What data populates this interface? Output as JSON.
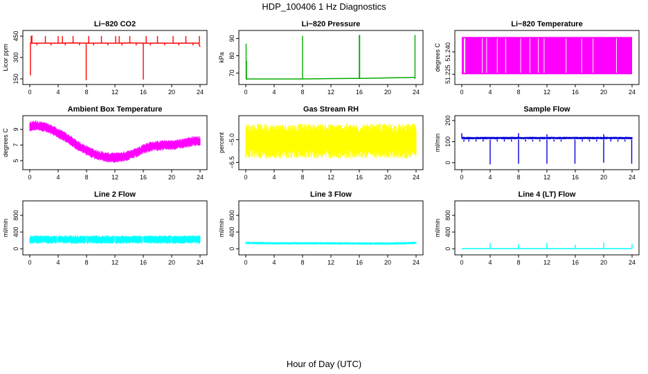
{
  "title": "HDP_100406  1 Hz Diagnostics",
  "xlabel": "Hour of Day (UTC)",
  "chart_data": [
    {
      "type": "line",
      "title": "Li−820 CO2",
      "ylabel": "Licor ppm",
      "color": "#ff0000",
      "xlim": [
        0,
        24
      ],
      "xticks": [
        0,
        4,
        8,
        12,
        16,
        20,
        24
      ],
      "ylim": [
        130,
        470
      ],
      "yticks": [
        150,
        300,
        450
      ],
      "ytick_labels": [
        "150",
        "300",
        "450"
      ],
      "series": [
        {
          "name": "baseline",
          "style": "line",
          "x": [
            0,
            0.2,
            2,
            4,
            6,
            7.9,
            8.1,
            10,
            12,
            14,
            15.9,
            16.1,
            18,
            20,
            22,
            23.8,
            24
          ],
          "y": [
            400,
            400,
            401,
            400,
            402,
            401,
            400,
            401,
            400,
            402,
            401,
            400,
            401,
            400,
            401,
            400,
            375
          ]
        },
        {
          "name": "spikes_up",
          "style": "spike",
          "base": 400,
          "x": [
            0.2,
            0.3,
            2.2,
            4.0,
            4.6,
            6.1,
            8.3,
            10.1,
            12.1,
            12.6,
            14.1,
            16.4,
            18.0,
            20.2,
            22.0,
            23.9
          ],
          "y": [
            450,
            455,
            450,
            450,
            450,
            450,
            450,
            450,
            450,
            450,
            450,
            450,
            450,
            450,
            450,
            450
          ]
        },
        {
          "name": "spikes_down",
          "style": "spike",
          "base": 400,
          "x": [
            0.1,
            7.95,
            16.0,
            1.0,
            3.0,
            5.0,
            7.0,
            9.0,
            11.0,
            13.0,
            15.0,
            17.0,
            19.0,
            21.0,
            23.0
          ],
          "y": [
            175,
            140,
            145,
            385,
            385,
            385,
            385,
            385,
            385,
            385,
            385,
            385,
            385,
            385,
            385
          ]
        }
      ]
    },
    {
      "type": "line",
      "title": "Li−820 Pressure",
      "ylabel": "kPa",
      "color": "#00aa00",
      "xlim": [
        0,
        24
      ],
      "xticks": [
        0,
        4,
        8,
        12,
        16,
        20,
        24
      ],
      "ylim": [
        65,
        93
      ],
      "yticks": [
        70,
        80,
        90
      ],
      "ytick_labels": [
        "70",
        "80",
        "90"
      ],
      "series": [
        {
          "name": "baseline",
          "style": "line",
          "x": [
            0,
            0.3,
            4,
            8,
            12,
            16,
            20,
            23.8
          ],
          "y": [
            66.5,
            66.6,
            66.6,
            66.6,
            66.8,
            66.9,
            67.2,
            67.5
          ]
        },
        {
          "name": "spikes_up",
          "style": "spike",
          "base": 66.6,
          "x": [
            0.05,
            0.1,
            8.0,
            16.0,
            16.05,
            23.85
          ],
          "y": [
            87,
            77,
            91.5,
            92,
            92,
            92
          ]
        }
      ]
    },
    {
      "type": "line",
      "title": "Li−820 Temperature",
      "ylabel": "degrees C",
      "color": "#ff00ff",
      "xlim": [
        0,
        24
      ],
      "xticks": [
        0,
        4,
        8,
        12,
        16,
        20,
        24
      ],
      "ylim": [
        51.22,
        51.2525
      ],
      "yticks": [
        51.225,
        51.24
      ],
      "ytick_labels": [
        "51.225",
        "51.240"
      ],
      "series": [
        {
          "name": "filled_bands",
          "style": "bands",
          "low": 51.225,
          "high": 51.25,
          "x": [
            0,
            0.3,
            0.6,
            1.5,
            1.7,
            2.8,
            3.1,
            3.4,
            3.6,
            4.2,
            4.5,
            6.0,
            6.4,
            24
          ],
          "gaps": [
            0.35,
            0.45,
            2.9,
            3.5,
            5.0,
            6.2,
            8.3,
            9.6,
            10.8,
            11.6,
            14.7,
            16.9,
            18.5,
            21.8
          ]
        }
      ]
    },
    {
      "type": "line",
      "title": "Ambient Box Temperature",
      "ylabel": "degrees C",
      "color": "#ff00ff",
      "xlim": [
        0,
        24
      ],
      "xticks": [
        0,
        4,
        8,
        12,
        16,
        20,
        24
      ],
      "ylim": [
        4.2,
        10.4
      ],
      "yticks": [
        5,
        7,
        9
      ],
      "ytick_labels": [
        "5",
        "7",
        "9"
      ],
      "series": [
        {
          "name": "mean",
          "style": "band",
          "half_width": 0.65,
          "x": [
            0,
            0.5,
            1,
            2,
            3,
            4,
            5,
            6,
            7,
            8,
            9,
            10,
            11,
            12,
            13,
            14,
            15,
            16,
            17,
            18,
            19,
            20,
            21,
            22,
            23,
            24
          ],
          "y": [
            9.3,
            9.5,
            9.5,
            9.3,
            9.0,
            8.5,
            8.0,
            7.4,
            6.8,
            6.3,
            5.9,
            5.6,
            5.4,
            5.4,
            5.5,
            5.7,
            6.0,
            6.5,
            6.8,
            6.9,
            7.0,
            7.0,
            7.1,
            7.3,
            7.5,
            7.5
          ]
        }
      ]
    },
    {
      "type": "line",
      "title": "Gas Stream RH",
      "ylabel": "percent",
      "color": "#ffff00",
      "xlim": [
        0,
        24
      ],
      "xticks": [
        0,
        4,
        8,
        12,
        16,
        20,
        24
      ],
      "ylim": [
        -6.8,
        -3.6
      ],
      "yticks": [
        -6.5,
        -5.0
      ],
      "ytick_labels": [
        "−6.5",
        "−5.0"
      ],
      "series": [
        {
          "name": "noise",
          "style": "band",
          "half_width": 1.15,
          "x": [
            0,
            4,
            8,
            12,
            16,
            20,
            24
          ],
          "y": [
            -5.1,
            -5.1,
            -5.1,
            -5.1,
            -5.1,
            -5.1,
            -5.1
          ]
        }
      ]
    },
    {
      "type": "line",
      "title": "Sample Flow",
      "ylabel": "ml/min",
      "color": "#0000dd",
      "xlim": [
        0,
        24
      ],
      "xticks": [
        0,
        4,
        8,
        12,
        16,
        20,
        24
      ],
      "ylim": [
        -20,
        210
      ],
      "yticks": [
        0,
        100,
        200
      ],
      "ytick_labels": [
        "0",
        "100",
        "200"
      ],
      "series": [
        {
          "name": "mean",
          "style": "band",
          "half_width": 6,
          "x": [
            0,
            4,
            8,
            12,
            16,
            20,
            24
          ],
          "y": [
            117,
            117,
            117,
            117,
            117,
            117,
            117
          ]
        },
        {
          "name": "dropouts",
          "style": "spike",
          "base": 110,
          "x": [
            4.0,
            8.0,
            12.0,
            15.95,
            20.0,
            23.95,
            0.3,
            1.0,
            2.0,
            3.0,
            5.0,
            6.0,
            7.0,
            9.0,
            10.0,
            11.0,
            13.0,
            14.0,
            17.0,
            18.0,
            19.0,
            21.0,
            22.0,
            23.0
          ],
          "y": [
            -8,
            -5,
            -5,
            -5,
            0,
            -5,
            100,
            100,
            100,
            100,
            100,
            100,
            100,
            100,
            100,
            100,
            100,
            100,
            100,
            100,
            100,
            100,
            100,
            100
          ]
        },
        {
          "name": "spikes_up",
          "style": "spike",
          "base": 120,
          "x": [
            0.0,
            8.0,
            12.0,
            20.0
          ],
          "y": [
            140,
            140,
            135,
            135
          ]
        }
      ]
    },
    {
      "type": "line",
      "title": "Line 2 Flow",
      "ylabel": "ml/min",
      "color": "#00ffff",
      "xlim": [
        0,
        24
      ],
      "xticks": [
        0,
        4,
        8,
        12,
        16,
        20,
        24
      ],
      "ylim": [
        -80,
        1080
      ],
      "yticks": [
        0,
        400,
        800
      ],
      "ytick_labels": [
        "0",
        "400",
        "800"
      ],
      "series": [
        {
          "name": "mean",
          "style": "band",
          "half_width": 100,
          "x": [
            0,
            24
          ],
          "y": [
            220,
            220
          ],
          "gaps": [
            3.9,
            8.0,
            12.0,
            15.9,
            19.9
          ]
        }
      ]
    },
    {
      "type": "line",
      "title": "Line 3 Flow",
      "ylabel": "ml/min",
      "color": "#00ffff",
      "xlim": [
        0,
        24
      ],
      "xticks": [
        0,
        4,
        8,
        12,
        16,
        20,
        24
      ],
      "ylim": [
        -80,
        1080
      ],
      "yticks": [
        0,
        400,
        800
      ],
      "ytick_labels": [
        "0",
        "400",
        "800"
      ],
      "series": [
        {
          "name": "mean",
          "style": "band",
          "half_width": 30,
          "x": [
            0,
            4,
            8,
            12,
            16,
            20,
            24
          ],
          "y": [
            140,
            130,
            130,
            130,
            125,
            125,
            140
          ]
        }
      ]
    },
    {
      "type": "line",
      "title": "Line 4 (LT) Flow",
      "ylabel": "ml/min",
      "color": "#00ffff",
      "xlim": [
        0,
        24
      ],
      "xticks": [
        0,
        4,
        8,
        12,
        16,
        20,
        24
      ],
      "ylim": [
        -80,
        1080
      ],
      "yticks": [
        0,
        400,
        800
      ],
      "ytick_labels": [
        "0",
        "400",
        "800"
      ],
      "series": [
        {
          "name": "baseline",
          "style": "line",
          "x": [
            0,
            24
          ],
          "y": [
            5,
            5
          ]
        },
        {
          "name": "spikes_up",
          "style": "spike",
          "base": 5,
          "x": [
            4.0,
            8.0,
            12.0,
            16.0,
            20.0,
            24.0
          ],
          "y": [
            140,
            110,
            140,
            100,
            150,
            120
          ]
        }
      ]
    }
  ]
}
